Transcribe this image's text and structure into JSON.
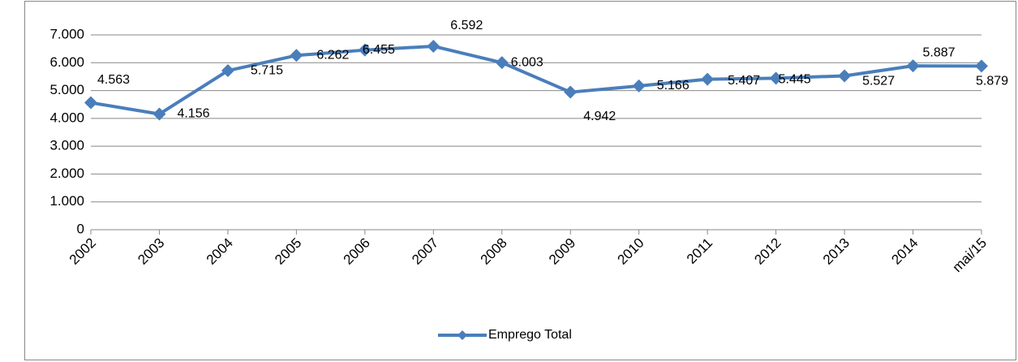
{
  "chart_data": {
    "type": "line",
    "categories": [
      "2002",
      "2003",
      "2004",
      "2005",
      "2006",
      "2007",
      "2008",
      "2009",
      "2010",
      "2011",
      "2012",
      "2013",
      "2014",
      "mai/15"
    ],
    "series": [
      {
        "name": "Emprego Total",
        "color": "#4a7ebb",
        "values": [
          4563,
          4156,
          5715,
          6262,
          6455,
          6592,
          6003,
          4942,
          5166,
          5407,
          5445,
          5527,
          5887,
          5879
        ],
        "value_labels": [
          "4.563",
          "4.156",
          "5.715",
          "6.262",
          "6.455",
          "6.592",
          "6.003",
          "4.942",
          "5.166",
          "5.407",
          "5.445",
          "5.527",
          "5.887",
          "5.879"
        ]
      }
    ],
    "ylim": [
      0,
      7000
    ],
    "yticks": [
      0,
      {
        "value": 1000,
        "label": "1.000"
      },
      {
        "value": 2000,
        "label": "2.000"
      },
      {
        "value": 3000,
        "label": "3.000"
      },
      {
        "value": 4000,
        "label": "4.000"
      },
      {
        "value": 5000,
        "label": "5.000"
      },
      {
        "value": 6000,
        "label": "6.000"
      },
      {
        "value": 7000,
        "label": "7.000"
      }
    ],
    "grid": true,
    "legend": "bottom"
  }
}
